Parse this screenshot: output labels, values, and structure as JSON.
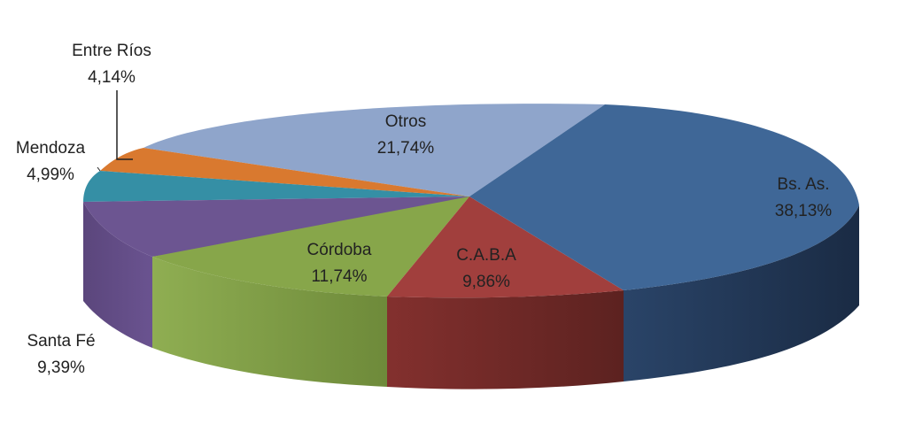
{
  "chart_data": {
    "type": "pie",
    "style": "3d-exploded-tilted",
    "legend": "none",
    "slices": [
      {
        "label": "Bs. As.",
        "value": 38.13,
        "display": "38,13%",
        "color": "#3F6797",
        "label_color": "#1a1a1a"
      },
      {
        "label": "C.A.B.A",
        "value": 9.86,
        "display": "9,86%",
        "color": "#A13F3D",
        "label_color": "#1a1a1a"
      },
      {
        "label": "Córdoba",
        "value": 11.74,
        "display": "11,74%",
        "color": "#87A64A",
        "label_color": "#1a1a1a"
      },
      {
        "label": "Santa Fé",
        "value": 9.39,
        "display": "9,39%",
        "color": "#6C5591",
        "label_color": "#222222"
      },
      {
        "label": "Mendoza",
        "value": 4.99,
        "display": "4,99%",
        "color": "#358FA5",
        "label_color": "#222222"
      },
      {
        "label": "Entre Ríos",
        "value": 4.14,
        "display": "4,14%",
        "color": "#D9792F",
        "label_color": "#222222"
      },
      {
        "label": "Otros",
        "value": 21.74,
        "display": "21,74%",
        "color": "#8FA5CB",
        "label_color": "#222222"
      }
    ]
  }
}
